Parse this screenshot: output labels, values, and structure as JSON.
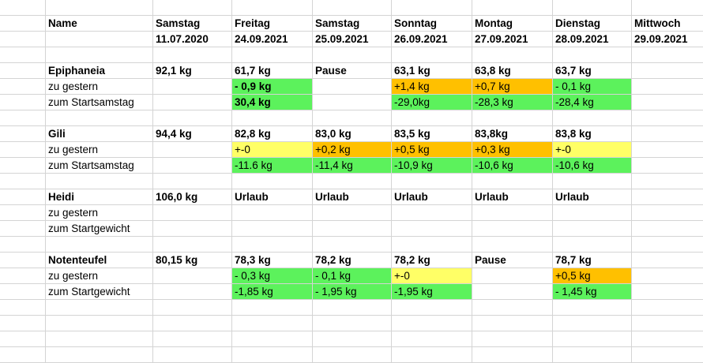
{
  "header": {
    "name_label": "Name",
    "days": [
      "Samstag",
      "Freitag",
      "Samstag",
      "Sonntag",
      "Montag",
      "Dienstag",
      "Mittwoch"
    ],
    "dates": [
      "11.07.2020",
      "24.09.2021",
      "25.09.2021",
      "26.09.2021",
      "27.09.2021",
      "28.09.2021",
      "29.09.2021"
    ]
  },
  "persons": [
    {
      "name": "Epiphaneia",
      "start": "92,1 kg",
      "values": [
        "61,7 kg",
        "Pause",
        "63,1 kg",
        "63,8 kg",
        "63,7 kg",
        ""
      ],
      "rows": [
        {
          "label": "zu gestern",
          "cells": [
            "- 0,9 kg",
            "",
            "+1,4 kg",
            "+0,7 kg",
            "- 0,1 kg",
            ""
          ],
          "colors": [
            "green",
            "",
            "orange",
            "orange",
            "green",
            ""
          ],
          "bold": [
            true,
            false,
            false,
            false,
            false,
            false
          ]
        },
        {
          "label": "zum Startsamstag",
          "cells": [
            "30,4 kg",
            "",
            "-29,0kg",
            "-28,3 kg",
            "-28,4 kg",
            ""
          ],
          "colors": [
            "green",
            "",
            "green",
            "green",
            "green",
            ""
          ],
          "bold": [
            true,
            false,
            false,
            false,
            false,
            false
          ]
        }
      ]
    },
    {
      "name": "Gili",
      "start": "94,4 kg",
      "values": [
        "82,8 kg",
        "83,0 kg",
        "83,5 kg",
        "83,8kg",
        "83,8 kg",
        ""
      ],
      "rows": [
        {
          "label": "zu gestern",
          "cells": [
            "+-0",
            "+0,2 kg",
            "+0,5 kg",
            "+0,3 kg",
            "+-0",
            ""
          ],
          "colors": [
            "yellow",
            "orange",
            "orange",
            "orange",
            "yellow",
            ""
          ],
          "bold": [
            false,
            false,
            false,
            false,
            false,
            false
          ]
        },
        {
          "label": "zum Startsamstag",
          "cells": [
            "-11.6 kg",
            "-11,4 kg",
            "-10,9 kg",
            "-10,6 kg",
            "-10,6 kg",
            ""
          ],
          "colors": [
            "green",
            "green",
            "green",
            "green",
            "green",
            ""
          ],
          "bold": [
            false,
            false,
            false,
            false,
            false,
            false
          ]
        }
      ]
    },
    {
      "name": "Heidi",
      "start": "106,0 kg",
      "values": [
        "Urlaub",
        "Urlaub",
        "Urlaub",
        "Urlaub",
        "Urlaub",
        ""
      ],
      "rows": [
        {
          "label": "zu gestern",
          "cells": [
            "",
            "",
            "",
            "",
            "",
            ""
          ],
          "colors": [
            "",
            "",
            "",
            "",
            "",
            ""
          ],
          "bold": [
            false,
            false,
            false,
            false,
            false,
            false
          ]
        },
        {
          "label": "zum Startgewicht",
          "cells": [
            "",
            "",
            "",
            "",
            "",
            ""
          ],
          "colors": [
            "",
            "",
            "",
            "",
            "",
            ""
          ],
          "bold": [
            false,
            false,
            false,
            false,
            false,
            false
          ]
        }
      ]
    },
    {
      "name": "Notenteufel",
      "start": "80,15 kg",
      "values": [
        "78,3 kg",
        "78,2 kg",
        "78,2 kg",
        "Pause",
        "78,7 kg",
        ""
      ],
      "rows": [
        {
          "label": "zu gestern",
          "cells": [
            "- 0,3 kg",
            "- 0,1 kg",
            "+-0",
            "",
            "+0,5 kg",
            ""
          ],
          "colors": [
            "green",
            "green",
            "yellow",
            "",
            "orange",
            ""
          ],
          "bold": [
            false,
            false,
            false,
            false,
            false,
            false
          ]
        },
        {
          "label": "zum Startgewicht",
          "cells": [
            "-1,85 kg",
            "- 1,95 kg",
            "-1,95 kg",
            "",
            "- 1,45 kg",
            ""
          ],
          "colors": [
            "green",
            "green",
            "green",
            "",
            "green",
            ""
          ],
          "bold": [
            false,
            false,
            false,
            false,
            false,
            false
          ]
        }
      ]
    }
  ]
}
